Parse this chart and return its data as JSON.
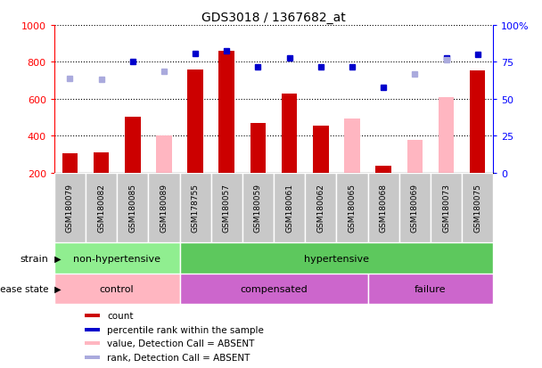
{
  "title": "GDS3018 / 1367682_at",
  "samples": [
    "GSM180079",
    "GSM180082",
    "GSM180085",
    "GSM180089",
    "GSM178755",
    "GSM180057",
    "GSM180059",
    "GSM180061",
    "GSM180062",
    "GSM180065",
    "GSM180068",
    "GSM180069",
    "GSM180073",
    "GSM180075"
  ],
  "count_values": [
    305,
    310,
    500,
    null,
    760,
    860,
    470,
    630,
    455,
    null,
    235,
    null,
    null,
    755
  ],
  "count_absent": [
    null,
    null,
    null,
    400,
    null,
    null,
    null,
    null,
    null,
    495,
    null,
    375,
    610,
    null
  ],
  "percentile_rank": [
    null,
    null,
    800,
    null,
    845,
    860,
    775,
    820,
    775,
    775,
    660,
    null,
    820,
    840
  ],
  "percentile_absent": [
    710,
    705,
    null,
    750,
    null,
    null,
    null,
    null,
    null,
    null,
    null,
    735,
    810,
    null
  ],
  "ylim_left": [
    200,
    1000
  ],
  "ylim_right": [
    0,
    100
  ],
  "yticks_left": [
    200,
    400,
    600,
    800,
    1000
  ],
  "yticks_right": [
    0,
    25,
    50,
    75,
    100
  ],
  "strain_groups": [
    {
      "label": "non-hypertensive",
      "start": 0,
      "end": 4,
      "color": "#90EE90"
    },
    {
      "label": "hypertensive",
      "start": 4,
      "end": 14,
      "color": "#5DC85D"
    }
  ],
  "disease_groups": [
    {
      "label": "control",
      "start": 0,
      "end": 4,
      "color": "#FFB6C1"
    },
    {
      "label": "compensated",
      "start": 4,
      "end": 10,
      "color": "#CC66CC"
    },
    {
      "label": "failure",
      "start": 10,
      "end": 14,
      "color": "#CC66CC"
    }
  ],
  "bar_color_dark_red": "#CC0000",
  "bar_color_pink": "#FFB6C1",
  "dot_color_dark_blue": "#0000CC",
  "dot_color_light_blue": "#AAAADD",
  "legend_items": [
    {
      "label": "count",
      "color": "#CC0000"
    },
    {
      "label": "percentile rank within the sample",
      "color": "#0000CC"
    },
    {
      "label": "value, Detection Call = ABSENT",
      "color": "#FFB6C1"
    },
    {
      "label": "rank, Detection Call = ABSENT",
      "color": "#AAAADD"
    }
  ],
  "background_color": "#FFFFFF",
  "xtick_bg": "#C8C8C8",
  "grid_color": "#000000"
}
